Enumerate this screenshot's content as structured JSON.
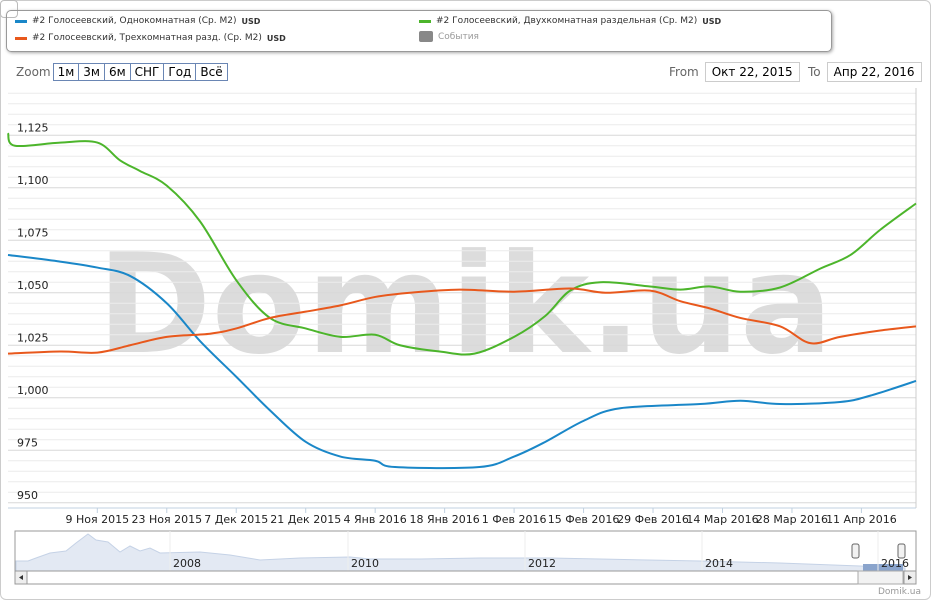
{
  "legend": [
    {
      "label": "#2 Голосеевский, Однокомнатная (Ср. М2)",
      "unit": "USD",
      "color": "#1a87c8"
    },
    {
      "label": "#2 Голосеевский, Двухкомнатная раздельная (Ср. М2)",
      "unit": "USD",
      "color": "#4cb52b"
    },
    {
      "label": "#2 Голосеевский, Трехкомнатная разд. (Ср. М2)",
      "unit": "USD",
      "color": "#e8581c"
    },
    {
      "label": "События",
      "color": "#888888"
    }
  ],
  "zoom": {
    "label": "Zoom",
    "buttons": [
      "1м",
      "3м",
      "6м",
      "СНГ",
      "Год",
      "Всё"
    ]
  },
  "range": {
    "from_label": "From",
    "from": "Окт 22, 2015",
    "to_label": "To",
    "to": "Апр 22, 2016"
  },
  "watermark": "Domik.ua",
  "credit": "Domik.ua",
  "chart_data": {
    "type": "line",
    "x_unit": "days since Oct 22, 2015",
    "xlim": [
      0,
      183
    ],
    "ylim": [
      947.5,
      1147.5
    ],
    "yticks": [
      950,
      975,
      1000,
      1025,
      1050,
      1075,
      1100,
      1125
    ],
    "ytick_labels": [
      "950",
      "975",
      "1,000",
      "1,025",
      "1,050",
      "1,075",
      "1,100",
      "1,125"
    ],
    "xticks": [
      18,
      32,
      46,
      60,
      74,
      88,
      102,
      116,
      130,
      144,
      158,
      172
    ],
    "xtick_labels": [
      "9 Ноя 2015",
      "23 Ноя 2015",
      "7 Дек 2015",
      "21 Дек 2015",
      "4 Янв 2016",
      "18 Янв 2016",
      "1 Фев 2016",
      "15 Фев 2016",
      "29 Фев 2016",
      "14 Мар 2016",
      "28 Мар 2016",
      "11 Апр 2016"
    ],
    "series": [
      {
        "name": "Однокомнатная",
        "color": "#1a87c8",
        "x": [
          0,
          10,
          18,
          24.6,
          32,
          38.7,
          46,
          52.8,
          60,
          67,
          74,
          78,
          95,
          102,
          108.3,
          116,
          123.4,
          139.5,
          147.6,
          155.6,
          167.7,
          173.8,
          183
        ],
        "y": [
          1068,
          1065,
          1062,
          1058,
          1045,
          1027,
          1010,
          994,
          979,
          972,
          970,
          967,
          967,
          972,
          979,
          989,
          995,
          997,
          998.6,
          997,
          998,
          1001,
          1008
        ]
      },
      {
        "name": "Двухкомнатная раздельная",
        "color": "#4cb52b",
        "x": [
          0,
          1.4,
          10.5,
          18,
          22.6,
          26.6,
          32,
          38.7,
          46,
          52.8,
          60,
          67,
          74,
          79,
          87,
          94,
          102,
          108.3,
          113.3,
          119.4,
          129.4,
          135.5,
          141.5,
          147.6,
          155.6,
          163.7,
          169.8,
          175.8,
          183
        ],
        "y": [
          1126,
          1120,
          1121.5,
          1121.5,
          1113,
          1108,
          1101,
          1084,
          1056,
          1038,
          1033,
          1029,
          1030,
          1025,
          1022,
          1021,
          1029,
          1039,
          1051,
          1055,
          1053,
          1051.5,
          1053,
          1050.5,
          1052.5,
          1061.5,
          1068,
          1080,
          1092.5
        ]
      },
      {
        "name": "Трехкомнатная разд.",
        "color": "#e8581c",
        "x": [
          0,
          10.5,
          18,
          24.6,
          32,
          40.7,
          46,
          52.8,
          60,
          67,
          74,
          81,
          91,
          102,
          113.3,
          120.4,
          129.4,
          135.5,
          141.5,
          147.6,
          155.6,
          161.7,
          167.7,
          175.8,
          183
        ],
        "y": [
          1021,
          1022,
          1021.5,
          1025,
          1029,
          1030.5,
          1033,
          1038,
          1041,
          1044,
          1048,
          1050,
          1051.5,
          1050.5,
          1052,
          1050,
          1051,
          1046,
          1042.5,
          1038,
          1034,
          1026,
          1029,
          1032,
          1034
        ]
      }
    ],
    "navigator": {
      "xtick_labels": [
        "2008",
        "2010",
        "2012",
        "2014",
        "2016"
      ]
    }
  }
}
